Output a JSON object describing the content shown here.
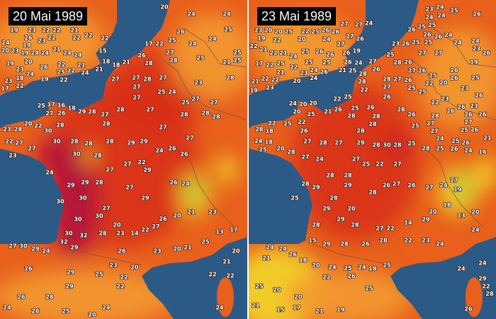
{
  "colors": {
    "sea": "#2c5a86",
    "land": "#e8601c",
    "hot": "#b3123c",
    "warm": "#d8301a",
    "mild": "#f29a30",
    "cool": "#f2d82a",
    "cold": "#8cc83c"
  },
  "panels": [
    {
      "title": "20 Mai 1989",
      "labels": [
        "20",
        "24",
        "24",
        "26",
        "25",
        "25",
        "24",
        "24",
        "25",
        "17",
        "22",
        "27",
        "28",
        "21",
        "25",
        "25",
        "26",
        "28",
        "18",
        "21",
        "27",
        "28",
        "27",
        "27",
        "25",
        "24",
        "23",
        "28",
        "27",
        "27",
        "27",
        "28",
        "27",
        "28",
        "25",
        "27",
        "27",
        "28",
        "28",
        "28",
        "27",
        "29",
        "29",
        "28",
        "28",
        "28",
        "30",
        "30",
        "28",
        "27",
        "26",
        "26",
        "24",
        "27",
        "22",
        "27",
        "29",
        "28",
        "29",
        "29",
        "24",
        "30",
        "30",
        "27",
        "29",
        "26",
        "24",
        "27",
        "30",
        "30",
        "30",
        "32",
        "32",
        "29",
        "28",
        "20",
        "22",
        "27",
        "26",
        "20",
        "21",
        "23",
        "13",
        "23",
        "14",
        "26",
        "23",
        "20",
        "21",
        "25",
        "17",
        "30",
        "29",
        "24",
        "27",
        "26",
        "29",
        "25",
        "22",
        "20",
        "22",
        "29",
        "26",
        "28",
        "24",
        "26",
        "25",
        "24",
        "20",
        "24",
        "22",
        "21",
        "20",
        "23",
        "22",
        "19",
        "23",
        "22",
        "22",
        "21",
        "26",
        "19",
        "23",
        "22",
        "22",
        "22",
        "22",
        "24",
        "20",
        "23",
        "19",
        "24",
        "24",
        "21",
        "24",
        "24",
        "15",
        "19",
        "20",
        "26",
        "22",
        "21",
        "21",
        "18",
        "23",
        "24",
        "25",
        "22",
        "24",
        "18",
        "19",
        "22",
        "23",
        "17",
        "22",
        "17",
        "16",
        "25",
        "27",
        "26",
        "18",
        "29",
        "28",
        "20",
        "23",
        "28",
        "22",
        "30",
        "28",
        "22",
        "27",
        "27",
        "23"
      ]
    },
    {
      "title": "23 Mai 1989",
      "labels": [
        "20",
        "26",
        "24",
        "23",
        "24",
        "24",
        "25",
        "26",
        "24",
        "25",
        "25",
        "26",
        "26",
        "26",
        "23",
        "26",
        "25",
        "25",
        "24",
        "24",
        "23",
        "26",
        "27",
        "27",
        "19",
        "25",
        "28",
        "27",
        "26",
        "26",
        "27",
        "26",
        "25",
        "22",
        "20",
        "26",
        "26",
        "25",
        "28",
        "28",
        "28",
        "27",
        "26",
        "25",
        "25",
        "22",
        "27",
        "26",
        "25",
        "22",
        "23",
        "26",
        "22",
        "23",
        "26",
        "26",
        "23",
        "26",
        "25",
        "26",
        "28",
        "28",
        "26",
        "28",
        "26",
        "27",
        "27",
        "25",
        "28",
        "28",
        "28",
        "27",
        "25",
        "26",
        "21",
        "24",
        "25",
        "26",
        "16",
        "26",
        "27",
        "28",
        "27",
        "29",
        "28",
        "30",
        "28",
        "25",
        "28",
        "25",
        "26",
        "24",
        "25",
        "22",
        "24",
        "20",
        "20",
        "20",
        "25",
        "21",
        "26",
        "28",
        "18",
        "22",
        "24",
        "18",
        "25",
        "20",
        "28",
        "27",
        "24",
        "27",
        "25",
        "22",
        "27",
        "28",
        "28",
        "29",
        "29",
        "28",
        "25",
        "28",
        "28",
        "26",
        "27",
        "26",
        "27",
        "24",
        "27",
        "19",
        "20",
        "29",
        "29",
        "28",
        "28",
        "27",
        "22",
        "14",
        "29",
        "20",
        "18",
        "13",
        "20",
        "24",
        "15",
        "29",
        "28",
        "26",
        "28",
        "22",
        "23",
        "24",
        "24",
        "24",
        "26",
        "21",
        "18",
        "20",
        "24",
        "25",
        "24",
        "18",
        "25",
        "24",
        "24",
        "22",
        "26",
        "25",
        "25",
        "20",
        "20",
        "21",
        "15",
        "17",
        "21",
        "19",
        "26",
        "29",
        "22",
        "28",
        "23",
        "20",
        "25",
        "22",
        "25",
        "26",
        "27",
        "27",
        "24",
        "19",
        "22",
        "20",
        "24",
        "27",
        "27",
        "26",
        "22",
        "21",
        "22",
        "21",
        "24",
        "25",
        "26",
        "26",
        "26",
        "19",
        "17",
        "22",
        "25",
        "22",
        "25",
        "25",
        "26",
        "24",
        "24",
        "26",
        "21",
        "25",
        "21",
        "22",
        "22",
        "21",
        "23",
        "23",
        "24",
        "20",
        "19",
        "18"
      ]
    }
  ]
}
